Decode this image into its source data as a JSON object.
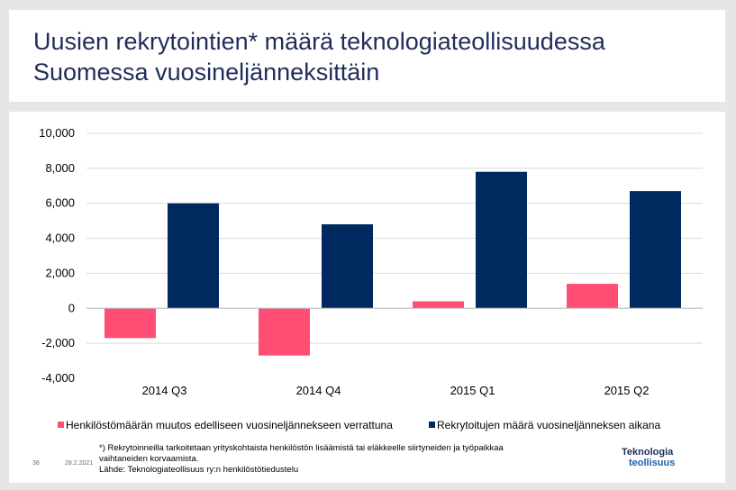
{
  "slide": {
    "title_line1": "Uusien rekrytointien* määrä  teknologiateollisuudessa",
    "title_line2": "Suomessa vuosineljänneksittäin",
    "footnote_line1": "*) Rekrytoinneilla tarkoitetaan yrityskohtaista henkilöstön lisäämistä tai eläkkeelle siirtyneiden ja työpaikkaa",
    "footnote_line2": "vaihtaneiden korvaamista.",
    "footnote_line3": "Lähde: Teknologiateollisuus ry:n henkilöstötiedustelu",
    "page_number": "38",
    "date": "28.2.2021",
    "logo_line1": "Teknologia",
    "logo_line2": "teollisuus"
  },
  "colors": {
    "series_change": "#ff4d73",
    "series_recruits": "#002960",
    "grid": "#d9d9d9",
    "title": "#1f2d5a"
  },
  "chart_data": {
    "type": "bar",
    "categories": [
      "2014 Q3",
      "2014 Q4",
      "2015 Q1",
      "2015 Q2"
    ],
    "series": [
      {
        "name": "Henkilöstömäärän muutos edelliseen vuosineljännekseen verrattuna",
        "values": [
          -1700,
          -2700,
          400,
          1400
        ]
      },
      {
        "name": "Rekrytoitujen määrä vuosineljänneksen aikana",
        "values": [
          6000,
          4800,
          7800,
          6700
        ]
      }
    ],
    "y_ticks": [
      "10,000",
      "8,000",
      "6,000",
      "4,000",
      "2,000",
      "0",
      "-2,000",
      "-4,000"
    ],
    "ylim": [
      -4000,
      10000
    ],
    "grid": true,
    "legend_position": "bottom"
  }
}
